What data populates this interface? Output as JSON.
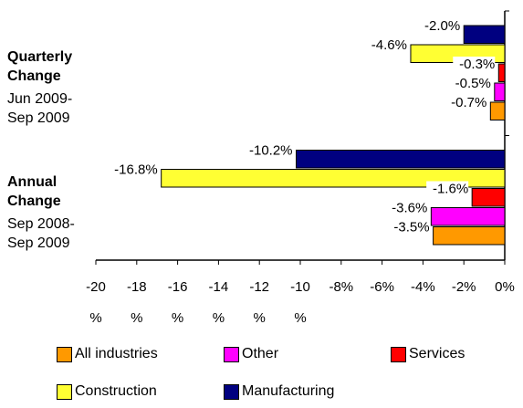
{
  "chart_data": {
    "type": "hbar",
    "categories": [
      "Quarterly Change",
      "Annual Change"
    ],
    "category_periods": [
      "Jun 2009-Sep 2009",
      "Sep 2008-Sep 2009"
    ],
    "series": [
      {
        "name": "Manufacturing",
        "color": "#000080",
        "values": [
          -2.0,
          -10.2
        ],
        "value_labels": [
          "-2.0%",
          "-10.2%"
        ]
      },
      {
        "name": "Construction",
        "color": "#ffff33",
        "values": [
          -4.6,
          -16.8
        ],
        "value_labels": [
          "-4.6%",
          "-16.8%"
        ]
      },
      {
        "name": "Services",
        "color": "#ff0000",
        "values": [
          -0.3,
          -1.6
        ],
        "value_labels": [
          "-0.3%",
          "-1.6%"
        ]
      },
      {
        "name": "Other",
        "color": "#ff00ff",
        "values": [
          -0.5,
          -3.6
        ],
        "value_labels": [
          "-0.5%",
          "-3.6%"
        ]
      },
      {
        "name": "All industries",
        "color": "#ff9900",
        "values": [
          -0.7,
          -3.5
        ],
        "value_labels": [
          "-0.7%",
          "-3.5%"
        ]
      }
    ],
    "xlim": [
      -20,
      0
    ],
    "xticks": [
      {
        "value": -20,
        "label": "-20%"
      },
      {
        "value": -18,
        "label": "-18%"
      },
      {
        "value": -16,
        "label": "-16%"
      },
      {
        "value": -14,
        "label": "-14%"
      },
      {
        "value": -12,
        "label": "-12%"
      },
      {
        "value": -10,
        "label": "-10%"
      },
      {
        "value": -8,
        "label": "-8%"
      },
      {
        "value": -6,
        "label": "-6%"
      },
      {
        "value": -4,
        "label": "-4%"
      },
      {
        "value": -2,
        "label": "-2%"
      },
      {
        "value": 0,
        "label": "0%"
      }
    ],
    "legend_order": [
      4,
      3,
      2,
      1,
      0
    ]
  }
}
